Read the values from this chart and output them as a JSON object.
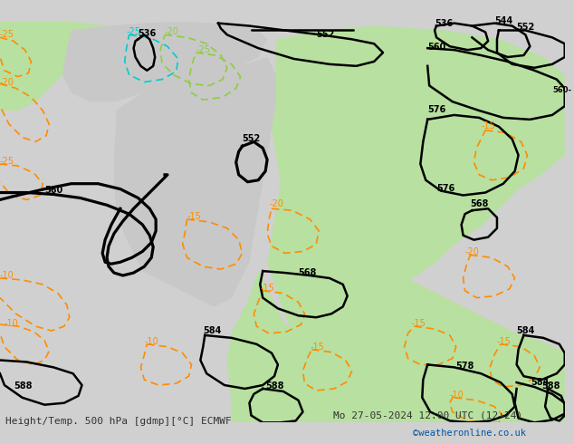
{
  "title_left": "Height/Temp. 500 hPa [gdmp][°C] ECMWF",
  "title_right": "Mo 27-05-2024 12:00 UTC (12+24)",
  "credit": "©weatheronline.co.uk",
  "bg_color": "#d0d0d0",
  "land_green_color": "#b8e0a0",
  "land_gray_color": "#c8c8c8",
  "z500_line_color": "#000000",
  "temp_neg_color": "#ff8c00",
  "temp_pos_color": "#006400",
  "temp_cyan_color": "#00cccc",
  "temp_lgreen_color": "#90cc40",
  "bottom_bar_color": "#e8e8e8",
  "font_size_labels": 8,
  "font_size_bottom": 8,
  "dpi": 100,
  "figw": 6.34,
  "figh": 4.9
}
